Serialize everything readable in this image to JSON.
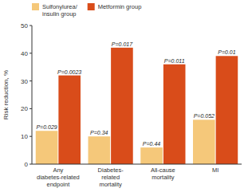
{
  "chart_data": {
    "type": "bar",
    "categories": [
      "Any\ndiabetes-related\nendpoint",
      "Diabetes-\nrelated\nmortality",
      "All-cause\nmortality",
      "MI"
    ],
    "series": [
      {
        "name": "Sulfonylurea/\ninsulin group",
        "color": "#F5C87A",
        "values": [
          12,
          10,
          6,
          16
        ],
        "annotations": [
          "P=0.029",
          "P=0.34",
          "P=0.44",
          "P=0.052"
        ]
      },
      {
        "name": "Metformin group",
        "color": "#D94C1A",
        "values": [
          32,
          42,
          36,
          39
        ],
        "annotations": [
          "P=0.0023",
          "P=0.017",
          "P=0.011",
          "P=0.01"
        ]
      }
    ],
    "ylabel": "Risk reduction, %",
    "ylim": [
      0,
      50
    ],
    "yticks": [
      0,
      10,
      20,
      30,
      40,
      50
    ],
    "legend": "upper left",
    "grid": false
  }
}
